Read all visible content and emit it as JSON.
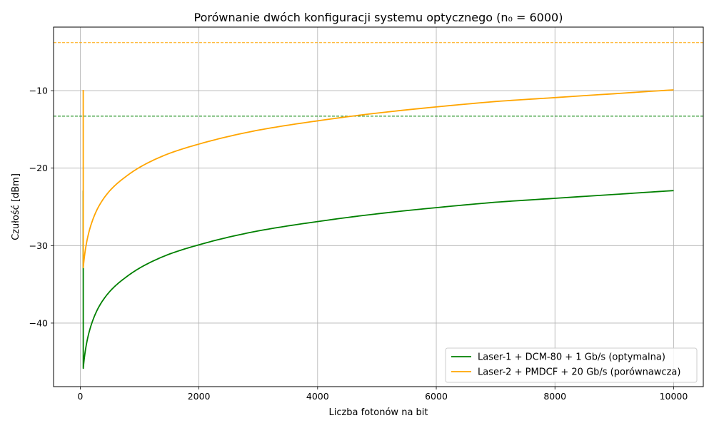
{
  "chart_data": {
    "type": "line",
    "title": "Porównanie dwóch konfiguracji systemu optycznego (n₀ = 6000)",
    "xlabel": "Liczba fotonów na bit",
    "ylabel": "Czułość [dBm]",
    "xlim": [
      -450,
      10500
    ],
    "ylim": [
      -48.2,
      -1.8
    ],
    "x_ticks": [
      0,
      2000,
      4000,
      6000,
      8000,
      10000
    ],
    "x_tick_labels": [
      "0",
      "2000",
      "4000",
      "6000",
      "8000",
      "10000"
    ],
    "y_ticks": [
      -10,
      -20,
      -30,
      -40
    ],
    "y_tick_labels": [
      "−10",
      "−20",
      "−30",
      "−40"
    ],
    "grid": true,
    "legend_position": "lower-right",
    "series": [
      {
        "name": "Laser-1 + DCM-80 + 1 Gb/s (optymalna)",
        "color": "#008000",
        "x": [
          50,
          100,
          200,
          300,
          500,
          750,
          1000,
          1500,
          2000,
          3000,
          4000,
          5000,
          6000,
          7000,
          8000,
          9000,
          10000
        ],
        "y": [
          -45.9,
          -42.9,
          -39.9,
          -38.1,
          -35.9,
          -34.2,
          -32.9,
          -31.1,
          -29.9,
          -28.1,
          -26.9,
          -25.9,
          -25.1,
          -24.4,
          -23.9,
          -23.4,
          -22.9
        ]
      },
      {
        "name": "Laser-2 + PMDCF + 20 Gb/s (porównawcza)",
        "color": "#FFA500",
        "x": [
          50,
          100,
          200,
          300,
          500,
          750,
          1000,
          1500,
          2000,
          3000,
          4000,
          5000,
          6000,
          7000,
          8000,
          9000,
          10000
        ],
        "y": [
          -32.9,
          -29.9,
          -26.9,
          -25.1,
          -22.9,
          -21.2,
          -19.9,
          -18.1,
          -16.9,
          -15.1,
          -13.9,
          -12.9,
          -12.1,
          -11.4,
          -10.9,
          -10.4,
          -9.9
        ]
      }
    ],
    "reference_lines": [
      {
        "y": -13.3,
        "color": "#008000",
        "style": "dashed"
      },
      {
        "y": -3.8,
        "color": "#FFA500",
        "style": "dashed"
      }
    ]
  }
}
